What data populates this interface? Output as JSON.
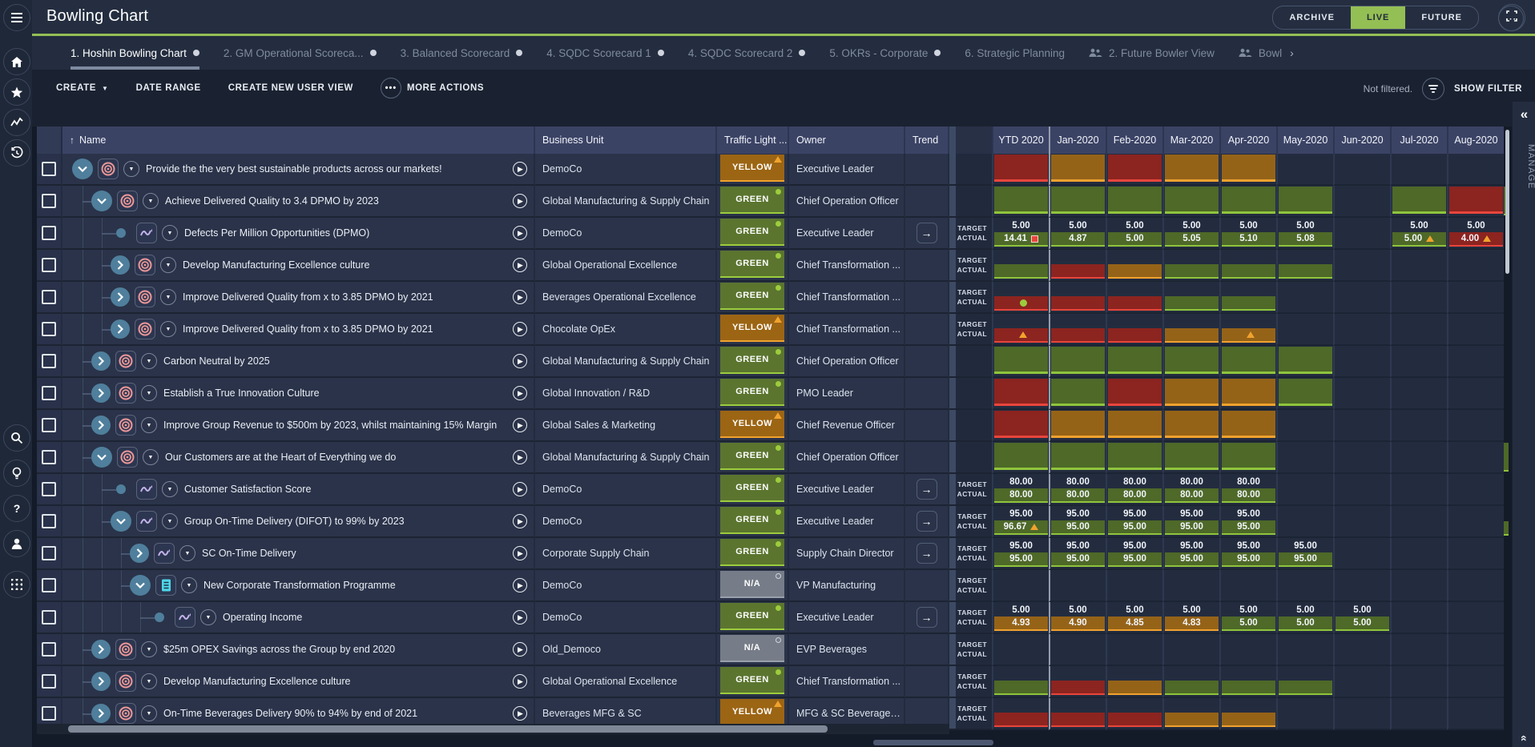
{
  "topbar": {
    "title": "Bowling Chart",
    "modes": [
      "ARCHIVE",
      "LIVE",
      "FUTURE"
    ],
    "active_mode": "LIVE"
  },
  "sidebar": {
    "icons": [
      "menu",
      "home",
      "star",
      "activity",
      "history",
      "search",
      "lightbulb",
      "help",
      "account",
      "apps"
    ]
  },
  "tabs": [
    {
      "label": "1. Hoshin Bowling Chart",
      "dot": true,
      "active": true
    },
    {
      "label": "2. GM Operational Scoreca...",
      "dot": true
    },
    {
      "label": "3. Balanced Scorecard",
      "dot": true
    },
    {
      "label": "4. SQDC Scorecard 1",
      "dot": true
    },
    {
      "label": "4. SQDC Scorecard 2",
      "dot": true
    },
    {
      "label": "5. OKRs - Corporate",
      "dot": true
    },
    {
      "label": "6. Strategic Planning"
    },
    {
      "label": "2. Future Bowler View",
      "group": true
    },
    {
      "label": "Bowl",
      "group": true,
      "chevron_after": "›"
    }
  ],
  "tabs_more_icon": "ellipsis",
  "toolbar": {
    "create": "CREATE",
    "date_range": "DATE RANGE",
    "create_new_user_view": "CREATE NEW USER VIEW",
    "more_actions": "MORE ACTIONS",
    "not_filtered": "Not filtered.",
    "show_filter": "SHOW FILTER"
  },
  "table": {
    "columns": [
      "Name",
      "Business Unit",
      "Traffic Light ...",
      "Owner",
      "Trend"
    ],
    "months": [
      "YTD 2020",
      "Jan-2020",
      "Feb-2020",
      "Mar-2020",
      "Apr-2020",
      "May-2020",
      "Jun-2020",
      "Jul-2020",
      "Aug-2020"
    ],
    "row_labels": {
      "target": "TARGET",
      "actual": "ACTUAL"
    },
    "traffic_labels": {
      "GREEN": "GREEN",
      "YELLOW": "YELLOW",
      "NA": "N/A"
    },
    "manage": "MANAGE",
    "rows": [
      {
        "name": "Provide the the very best sustainable products across our markets!",
        "level": 0,
        "exp": "open",
        "icon": "target",
        "bu": "DemoCo",
        "traffic": "YELLOW",
        "owner": "Executive Leader",
        "trend": false,
        "kind": "blocks",
        "blocks": [
          "r",
          "y",
          "r",
          "y",
          "y",
          "",
          "",
          "",
          ""
        ]
      },
      {
        "name": "Achieve Delivered Quality to 3.4 DPMO by 2023",
        "level": 1,
        "exp": "open",
        "icon": "target",
        "bu": "Global Manufacturing & Supply Chain",
        "traffic": "GREEN",
        "owner": "Chief Operation Officer",
        "trend": false,
        "kind": "blocks",
        "blocks": [
          "g",
          "g",
          "g",
          "g",
          "g",
          "g",
          "",
          "g",
          "r"
        ],
        "sliver": true
      },
      {
        "name": "Defects Per Million Opportunities (DPMO)",
        "level": 2,
        "exp": "leaf",
        "icon": "metric",
        "bu": "DemoCo",
        "traffic": "GREEN",
        "owner": "Executive Leader",
        "trend": true,
        "kind": "ta",
        "target": [
          "5.00",
          "5.00",
          "5.00",
          "5.00",
          "5.00",
          "5.00",
          "",
          "5.00",
          "5.00"
        ],
        "actual": [
          {
            "v": "14.41",
            "c": "g",
            "m": "sq"
          },
          {
            "v": "4.87",
            "c": "g"
          },
          {
            "v": "5.00",
            "c": "g"
          },
          {
            "v": "5.05",
            "c": "g"
          },
          {
            "v": "5.10",
            "c": "g"
          },
          {
            "v": "5.08",
            "c": "g"
          },
          {},
          {
            "v": "5.00",
            "c": "g",
            "m": "tri"
          },
          {
            "v": "4.00",
            "c": "r",
            "m": "tri"
          }
        ]
      },
      {
        "name": "Develop Manufacturing Excellence culture",
        "level": 2,
        "exp": "closed",
        "icon": "target",
        "bu": "Global Operational Excellence",
        "traffic": "GREEN",
        "owner": "Chief Transformation ...",
        "trend": false,
        "kind": "ta",
        "target": [],
        "actual": [
          {
            "c": "g"
          },
          {
            "c": "r"
          },
          {
            "c": "y"
          },
          {
            "c": "g"
          },
          {
            "c": "g"
          },
          {
            "c": "g"
          },
          {},
          {},
          {}
        ]
      },
      {
        "name": "Improve Delivered Quality from x to 3.85 DPMO by 2021",
        "level": 2,
        "exp": "closed",
        "icon": "target",
        "bu": "Beverages Operational Excellence",
        "traffic": "GREEN",
        "owner": "Chief Transformation ...",
        "trend": false,
        "kind": "ta",
        "target": [],
        "actual": [
          {
            "c": "r",
            "m": "dot"
          },
          {
            "c": "r"
          },
          {
            "c": "r"
          },
          {
            "c": "g"
          },
          {
            "c": "g"
          },
          {},
          {},
          {},
          {}
        ]
      },
      {
        "name": "Improve Delivered Quality from x to 3.85 DPMO by 2021",
        "level": 2,
        "exp": "closed",
        "icon": "target",
        "bu": "Chocolate OpEx",
        "traffic": "YELLOW",
        "owner": "Chief Transformation ...",
        "trend": false,
        "kind": "ta",
        "target": [],
        "actual": [
          {
            "c": "r",
            "m": "tri"
          },
          {
            "c": "r"
          },
          {
            "c": "r"
          },
          {
            "c": "y"
          },
          {
            "c": "y",
            "m": "tri"
          },
          {},
          {},
          {},
          {}
        ]
      },
      {
        "name": "Carbon Neutral by 2025",
        "level": 1,
        "exp": "closed",
        "icon": "target",
        "bu": "Global Manufacturing & Supply Chain",
        "traffic": "GREEN",
        "owner": "Chief Operation Officer",
        "trend": false,
        "kind": "blocks",
        "blocks": [
          "g",
          "g",
          "g",
          "g",
          "g",
          "g",
          "",
          "",
          ""
        ]
      },
      {
        "name": "Establish a True Innovation Culture",
        "level": 1,
        "exp": "closed",
        "icon": "target",
        "bu": "Global Innovation / R&D",
        "traffic": "GREEN",
        "owner": "PMO Leader",
        "trend": false,
        "kind": "blocks",
        "blocks": [
          "r",
          "g",
          "r",
          "y",
          "y",
          "g",
          "",
          "",
          ""
        ]
      },
      {
        "name": "Improve Group Revenue to $500m by 2023, whilst maintaining 15% Margin",
        "level": 1,
        "exp": "closed",
        "icon": "target",
        "bu": "Global Sales & Marketing",
        "traffic": "YELLOW",
        "owner": "Chief Revenue Officer",
        "trend": false,
        "kind": "blocks",
        "blocks": [
          "r",
          "y",
          "y",
          "y",
          "y",
          "",
          "",
          "",
          ""
        ]
      },
      {
        "name": "Our Customers are at the Heart of Everything we do",
        "level": 1,
        "exp": "open",
        "icon": "target",
        "bu": "Global Manufacturing & Supply Chain",
        "traffic": "GREEN",
        "owner": "Chief Operation Officer",
        "trend": false,
        "kind": "blocks",
        "blocks": [
          "g",
          "g",
          "g",
          "g",
          "g",
          "",
          "",
          "",
          ""
        ],
        "sliver": true
      },
      {
        "name": "Customer Satisfaction Score",
        "level": 2,
        "exp": "leaf",
        "icon": "metric",
        "bu": "DemoCo",
        "traffic": "GREEN",
        "owner": "Executive Leader",
        "trend": true,
        "kind": "ta",
        "target": [
          "80.00",
          "80.00",
          "80.00",
          "80.00",
          "80.00",
          "",
          "",
          "",
          ""
        ],
        "actual": [
          {
            "v": "80.00",
            "c": "g"
          },
          {
            "v": "80.00",
            "c": "g"
          },
          {
            "v": "80.00",
            "c": "g"
          },
          {
            "v": "80.00",
            "c": "g"
          },
          {
            "v": "80.00",
            "c": "g"
          },
          {},
          {},
          {},
          {}
        ]
      },
      {
        "name": "Group On-Time Delivery (DIFOT) to 99% by 2023",
        "level": 2,
        "exp": "open",
        "icon": "metric",
        "bu": "DemoCo",
        "traffic": "GREEN",
        "owner": "Executive Leader",
        "trend": true,
        "kind": "ta",
        "target": [
          "95.00",
          "95.00",
          "95.00",
          "95.00",
          "95.00",
          "",
          "",
          "",
          ""
        ],
        "actual": [
          {
            "v": "96.67",
            "c": "g",
            "m": "tri"
          },
          {
            "v": "95.00",
            "c": "g"
          },
          {
            "v": "95.00",
            "c": "g"
          },
          {
            "v": "95.00",
            "c": "g"
          },
          {
            "v": "95.00",
            "c": "g"
          },
          {},
          {},
          {},
          {}
        ],
        "sliver": true
      },
      {
        "name": "SC On-Time Delivery",
        "level": 3,
        "exp": "closed",
        "icon": "metric",
        "bu": "Corporate Supply Chain",
        "traffic": "GREEN",
        "owner": "Supply Chain Director",
        "trend": true,
        "kind": "ta",
        "target": [
          "95.00",
          "95.00",
          "95.00",
          "95.00",
          "95.00",
          "95.00",
          "",
          "",
          ""
        ],
        "actual": [
          {
            "v": "95.00",
            "c": "g"
          },
          {
            "v": "95.00",
            "c": "g"
          },
          {
            "v": "95.00",
            "c": "g"
          },
          {
            "v": "95.00",
            "c": "g"
          },
          {
            "v": "95.00",
            "c": "g"
          },
          {
            "v": "95.00",
            "c": "g"
          },
          {},
          {},
          {}
        ]
      },
      {
        "name": "New Corporate Transformation Programme",
        "level": 3,
        "exp": "open",
        "icon": "project",
        "bu": "DemoCo",
        "traffic": "NA",
        "owner": "VP Manufacturing",
        "trend": false,
        "kind": "ta",
        "target": [],
        "actual": [
          {},
          {},
          {},
          {},
          {},
          {},
          {},
          {},
          {}
        ]
      },
      {
        "name": "Operating Income",
        "level": 4,
        "exp": "leaf",
        "icon": "metric",
        "bu": "DemoCo",
        "traffic": "GREEN",
        "owner": "Executive Leader",
        "trend": true,
        "kind": "ta",
        "target": [
          "5.00",
          "5.00",
          "5.00",
          "5.00",
          "5.00",
          "5.00",
          "5.00",
          "",
          ""
        ],
        "actual": [
          {
            "v": "4.93",
            "c": "y"
          },
          {
            "v": "4.90",
            "c": "y"
          },
          {
            "v": "4.85",
            "c": "y"
          },
          {
            "v": "4.83",
            "c": "y"
          },
          {
            "v": "5.00",
            "c": "g"
          },
          {
            "v": "5.00",
            "c": "g"
          },
          {
            "v": "5.00",
            "c": "g"
          },
          {},
          {}
        ]
      },
      {
        "name": "$25m OPEX Savings across the Group by end 2020",
        "level": 1,
        "exp": "closed",
        "icon": "target",
        "bu": "Old_Democo",
        "traffic": "NA",
        "owner": "EVP Beverages",
        "trend": false,
        "kind": "ta",
        "target": [],
        "actual": [
          {},
          {},
          {},
          {},
          {},
          {},
          {},
          {},
          {}
        ]
      },
      {
        "name": "Develop Manufacturing Excellence culture",
        "level": 1,
        "exp": "closed",
        "icon": "target",
        "bu": "Global Operational Excellence",
        "traffic": "GREEN",
        "owner": "Chief Transformation ...",
        "trend": false,
        "kind": "ta",
        "target": [],
        "actual": [
          {
            "c": "g"
          },
          {
            "c": "r"
          },
          {
            "c": "y"
          },
          {
            "c": "g"
          },
          {
            "c": "g"
          },
          {
            "c": "g"
          },
          {},
          {},
          {}
        ]
      },
      {
        "name": "On-Time Beverages Delivery 90% to 94% by end of 2021",
        "level": 1,
        "exp": "closed",
        "icon": "target",
        "bu": "Beverages MFG & SC",
        "traffic": "YELLOW",
        "owner": "MFG & SC Beverages D...",
        "trend": false,
        "kind": "ta",
        "target": [],
        "actual": [
          {
            "c": "r"
          },
          {
            "c": "r"
          },
          {
            "c": "r"
          },
          {
            "c": "y"
          },
          {
            "c": "y"
          },
          {},
          {},
          {},
          {}
        ]
      }
    ]
  },
  "colors": {
    "accent_green": "#94bf54",
    "cell_green": "#4e6928",
    "cell_green_edge": "#8fc43c",
    "cell_red": "#8c2420",
    "cell_red_edge": "#e8453c",
    "cell_yellow": "#956318",
    "cell_yellow_edge": "#f0a22e",
    "badge_green": "#5b752f",
    "badge_green_edge": "#9ccc3d",
    "badge_yellow": "#9c6514",
    "badge_yellow_edge": "#f0a22e",
    "badge_na": "#767d89",
    "badge_na_edge": "#9aa0ab"
  }
}
